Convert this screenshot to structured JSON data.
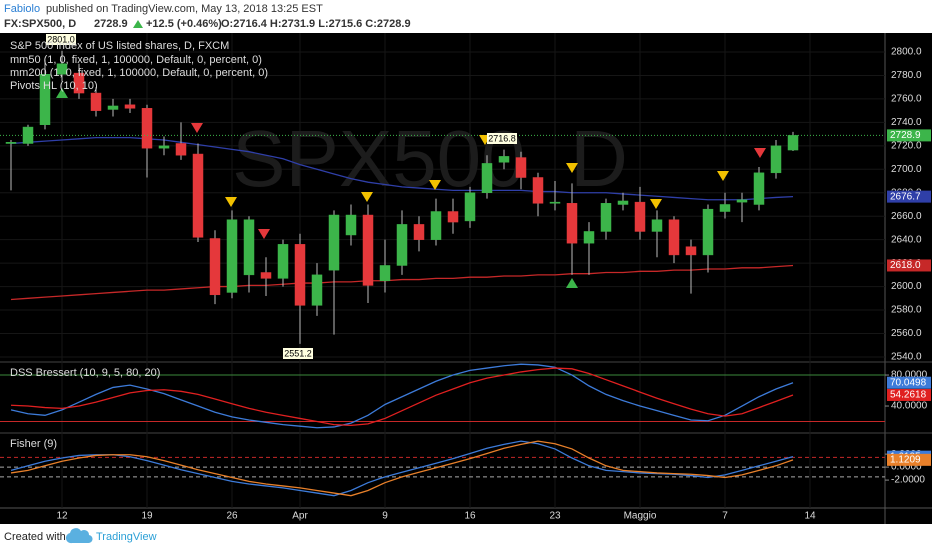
{
  "header": {
    "author": "Fabiolo",
    "published": "published on TradingView.com, May 13, 2018 13:25 EST",
    "symbol": "FX:SPX500, D",
    "last": "2728.9",
    "change": "+12.5 (+0.46%)",
    "ohlc": "O:2716.4 H:2731.9 L:2715.6 C:2728.9"
  },
  "footer": {
    "created": "Created with",
    "brand": "TradingView"
  },
  "chart_data": [
    {
      "type": "candlestick",
      "title": "S&P 500 index of US listed shares, D, FXCM",
      "watermark": "SPX500, D",
      "indicator": "Pivots HL (10, 10)",
      "annotations": [
        "2801.0",
        "2716.8",
        "2551.2"
      ],
      "categories": [
        null,
        null,
        null,
        "12",
        null,
        null,
        null,
        null,
        "19",
        null,
        null,
        null,
        null,
        "26",
        null,
        null,
        null,
        "Apr",
        null,
        null,
        null,
        null,
        "9",
        null,
        null,
        null,
        null,
        "16",
        null,
        null,
        null,
        null,
        "23",
        null,
        null,
        null,
        null,
        "Maggio",
        null,
        null,
        null,
        null,
        "7",
        null,
        null,
        null,
        null,
        "14"
      ],
      "open": [
        2722,
        2722,
        2738,
        2781,
        2782,
        2765,
        2751,
        2755,
        2752,
        2718,
        2722,
        2713,
        2641,
        2595,
        2610,
        2612,
        2607,
        2636,
        2584,
        2614,
        2644,
        2661,
        2605,
        2618,
        2653,
        2640,
        2664,
        2656,
        2680,
        2706,
        2710,
        2693,
        2671,
        2671,
        2637,
        2647,
        2670,
        2672,
        2647,
        2657,
        2634,
        2627,
        2664,
        2672,
        2670,
        2697,
        2716.4,
        null
      ],
      "high": [
        2725,
        2738,
        2793,
        2801,
        2790,
        2770,
        2760,
        2760,
        2755,
        2728,
        2740,
        2722,
        2648,
        2665,
        2660,
        2625,
        2640,
        2645,
        2620,
        2665,
        2670,
        2670,
        2640,
        2665,
        2660,
        2675,
        2675,
        2685,
        2712,
        2716.8,
        2715,
        2697,
        2690,
        2688,
        2655,
        2675,
        2680,
        2685,
        2665,
        2660,
        2640,
        2670,
        2680,
        2680,
        2702,
        2725,
        2731.9,
        null
      ],
      "low": [
        2682,
        2720,
        2734,
        2775,
        2760,
        2745,
        2745,
        2748,
        2693,
        2712,
        2708,
        2638,
        2585,
        2590,
        2595,
        2592,
        2600,
        2551.2,
        2575,
        2559,
        2635,
        2586,
        2595,
        2610,
        2630,
        2635,
        2645,
        2650,
        2675,
        2700,
        2683,
        2660,
        2665,
        2610,
        2610,
        2640,
        2665,
        2640,
        2625,
        2620,
        2594,
        2612,
        2658,
        2655,
        2665,
        2692,
        2715.6,
        null
      ],
      "close": [
        2723,
        2736,
        2781,
        2790,
        2765,
        2750,
        2754,
        2752,
        2718,
        2720,
        2712,
        2642,
        2593,
        2657,
        2657,
        2607,
        2636,
        2584,
        2610,
        2661,
        2661,
        2601,
        2618,
        2653,
        2640,
        2664,
        2655,
        2680,
        2705,
        2711,
        2693,
        2671,
        2672,
        2637,
        2647,
        2671,
        2673,
        2647,
        2657,
        2627,
        2627,
        2666,
        2670,
        2674,
        2697,
        2720,
        2728.9,
        null
      ],
      "up_color": "#3cb54a",
      "down_color": "#e5383b",
      "close_color": "#3cb54a",
      "series": [
        {
          "name": "mm50 (1, 0, fixed, 1, 100000, Default, 0, percent, 0)",
          "color": "#2f3fa8",
          "values": [
            2722,
            2723,
            2724,
            2725,
            2726,
            2727,
            2727,
            2727,
            2726,
            2725,
            2723,
            2721,
            2719,
            2717,
            2715,
            2712,
            2709,
            2704,
            2700,
            2696,
            2692,
            2689,
            2687,
            2685,
            2684,
            2683,
            2682,
            2682,
            2682,
            2682,
            2682,
            2681,
            2681,
            2680,
            2680,
            2680,
            2679,
            2678,
            2677,
            2676,
            2675,
            2674,
            2674,
            2674,
            2675,
            2676,
            2676.7,
            null
          ]
        },
        {
          "name": "mm200 (1, 0, fixed, 1, 100000, Default, 0, percent, 0)",
          "color": "#c62828",
          "last_label": "2618.0",
          "values": [
            2589,
            2590,
            2591,
            2592,
            2593,
            2594,
            2595,
            2596,
            2597,
            2597,
            2598,
            2599,
            2600,
            2600,
            2601,
            2601,
            2602,
            2603,
            2603,
            2604,
            2604,
            2605,
            2605,
            2606,
            2606,
            2607,
            2607,
            2608,
            2608,
            2609,
            2609,
            2610,
            2610,
            2611,
            2611,
            2612,
            2612,
            2613,
            2613,
            2614,
            2614,
            2615,
            2615,
            2616,
            2616,
            2617,
            2618,
            null
          ]
        }
      ],
      "ylim": [
        2535.7,
        2816.2
      ],
      "yticks": [
        {
          "value": 2540,
          "label": "2540.0"
        },
        {
          "value": 2560,
          "label": "2560.0"
        },
        {
          "value": 2580,
          "label": "2580.0"
        },
        {
          "value": 2600,
          "label": "2600.0"
        },
        {
          "value": 2620,
          "label": "2620.0"
        },
        {
          "value": 2640,
          "label": "2640.0"
        },
        {
          "value": 2660,
          "label": "2660.0"
        },
        {
          "value": 2680,
          "label": "2680.0"
        },
        {
          "value": 2700,
          "label": "2700.0"
        },
        {
          "value": 2720,
          "label": "2720.0"
        },
        {
          "value": 2740,
          "label": "2740.0"
        },
        {
          "value": 2760,
          "label": "2760.0"
        },
        {
          "value": 2780,
          "label": "2780.0"
        },
        {
          "value": 2800,
          "label": "2800.0"
        }
      ],
      "grid": true
    },
    {
      "type": "line",
      "title": "DSS Bressert (10, 9, 5, 80, 20)",
      "series": [
        {
          "name": "DSS",
          "color": "#3d7bd9",
          "values": [
            35,
            30,
            28,
            35,
            45,
            55,
            64,
            67,
            62,
            56,
            48,
            40,
            32,
            26,
            22,
            19,
            16,
            14,
            12,
            13,
            18,
            28,
            42,
            52,
            62,
            72,
            80,
            86,
            89,
            92,
            94,
            93,
            90,
            80,
            66,
            55,
            47,
            40,
            34,
            28,
            22,
            21,
            28,
            40,
            52,
            62,
            70.0498
          ]
        },
        {
          "name": "Signal",
          "color": "#e02020",
          "values": [
            41,
            40,
            38,
            37,
            40,
            45,
            51,
            57,
            60,
            61,
            59,
            55,
            49,
            43,
            37,
            32,
            28,
            24,
            20,
            16,
            15,
            17,
            24,
            34,
            44,
            54,
            62,
            70,
            76,
            80,
            84,
            87,
            89,
            88,
            82,
            74,
            66,
            58,
            50,
            43,
            36,
            30,
            27,
            30,
            38,
            46,
            54.2618
          ]
        }
      ],
      "levels": [
        80,
        20
      ],
      "level_colors": [
        "#3c8a3c",
        "#c62828"
      ],
      "ylim": [
        6.5,
        96.8
      ],
      "yticks": [
        {
          "value": 80,
          "label": "80.0000"
        },
        {
          "value": 40,
          "label": "40.0000"
        }
      ]
    },
    {
      "type": "line",
      "title": "Fisher (9)",
      "series": [
        {
          "name": "Fisher",
          "color": "#3d7bd9",
          "values": [
            -0.5,
            0.2,
            0.9,
            1.4,
            1.8,
            1.9,
            1.9,
            1.6,
            1.0,
            0.3,
            -0.4,
            -1.0,
            -1.6,
            -2.2,
            -2.6,
            -2.9,
            -3.2,
            -3.6,
            -4.0,
            -4.4,
            -3.6,
            -2.4,
            -1.5,
            -0.8,
            -0.1,
            0.6,
            1.3,
            2.1,
            2.9,
            3.5,
            4.0,
            3.6,
            2.8,
            1.4,
            0.2,
            -0.5,
            -0.7,
            -0.9,
            -1.0,
            -1.1,
            -1.3,
            -1.6,
            -1.2,
            -0.5,
            0.2,
            0.9,
            1.6105
          ]
        },
        {
          "name": "Trigger",
          "color": "#e8802a",
          "values": [
            -0.9,
            -0.5,
            0.2,
            0.9,
            1.4,
            1.8,
            1.9,
            1.9,
            1.6,
            1.0,
            0.3,
            -0.4,
            -1.0,
            -1.6,
            -2.2,
            -2.6,
            -2.9,
            -3.2,
            -3.6,
            -4.0,
            -4.4,
            -3.6,
            -2.4,
            -1.5,
            -0.8,
            -0.1,
            0.6,
            1.3,
            2.1,
            2.9,
            3.5,
            4.0,
            3.6,
            2.8,
            1.4,
            0.2,
            -0.5,
            -0.7,
            -0.9,
            -1.0,
            -1.1,
            -1.3,
            -1.6,
            -1.2,
            -0.5,
            0.2,
            1.1209
          ]
        }
      ],
      "levels": [
        1.5,
        0,
        -1.5
      ],
      "level_colors": [
        "#c62828",
        "#aaaaaa",
        "#aaaaaa"
      ],
      "ylim": [
        -6.3,
        5.1
      ],
      "yticks": [
        {
          "value": 2,
          "label": "2.0000"
        },
        {
          "value": 0,
          "label": "0.0000"
        },
        {
          "value": -2,
          "label": "-2.0000"
        }
      ]
    }
  ]
}
